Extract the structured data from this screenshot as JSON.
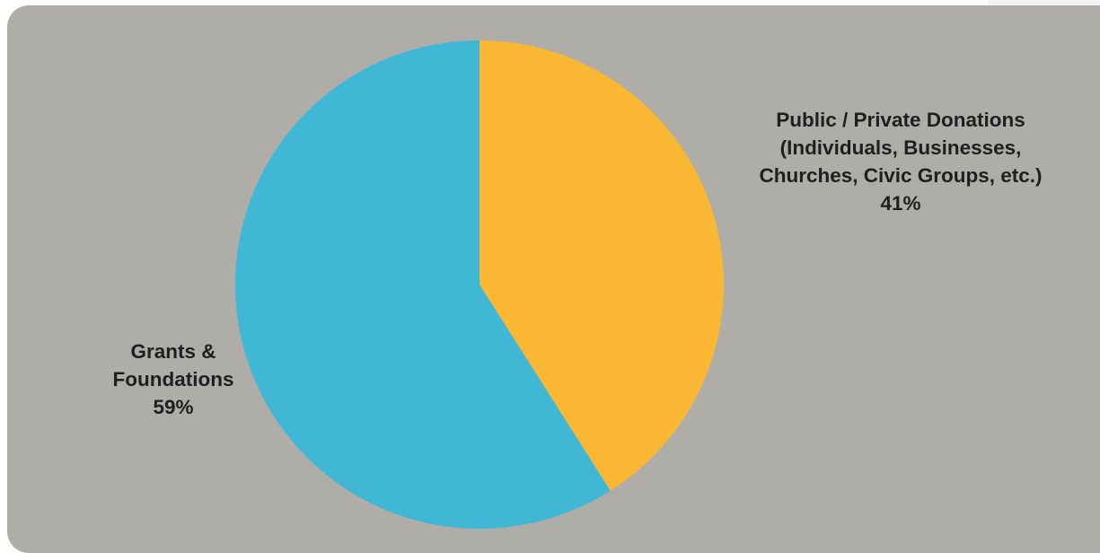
{
  "chart_data": {
    "type": "pie",
    "title": "",
    "background": "#aeada8",
    "start_angle_deg": 0,
    "direction": "clockwise",
    "slices": [
      {
        "label_lines": [
          "Public / Private Donations",
          "(Individuals, Businesses,",
          "Churches, Civic Groups, etc.)"
        ],
        "value": 41,
        "value_label": "41%",
        "color": "#f9b733"
      },
      {
        "label_lines": [
          "Grants &",
          "Foundations"
        ],
        "value": 59,
        "value_label": "59%",
        "color": "#41b7d6"
      }
    ]
  }
}
